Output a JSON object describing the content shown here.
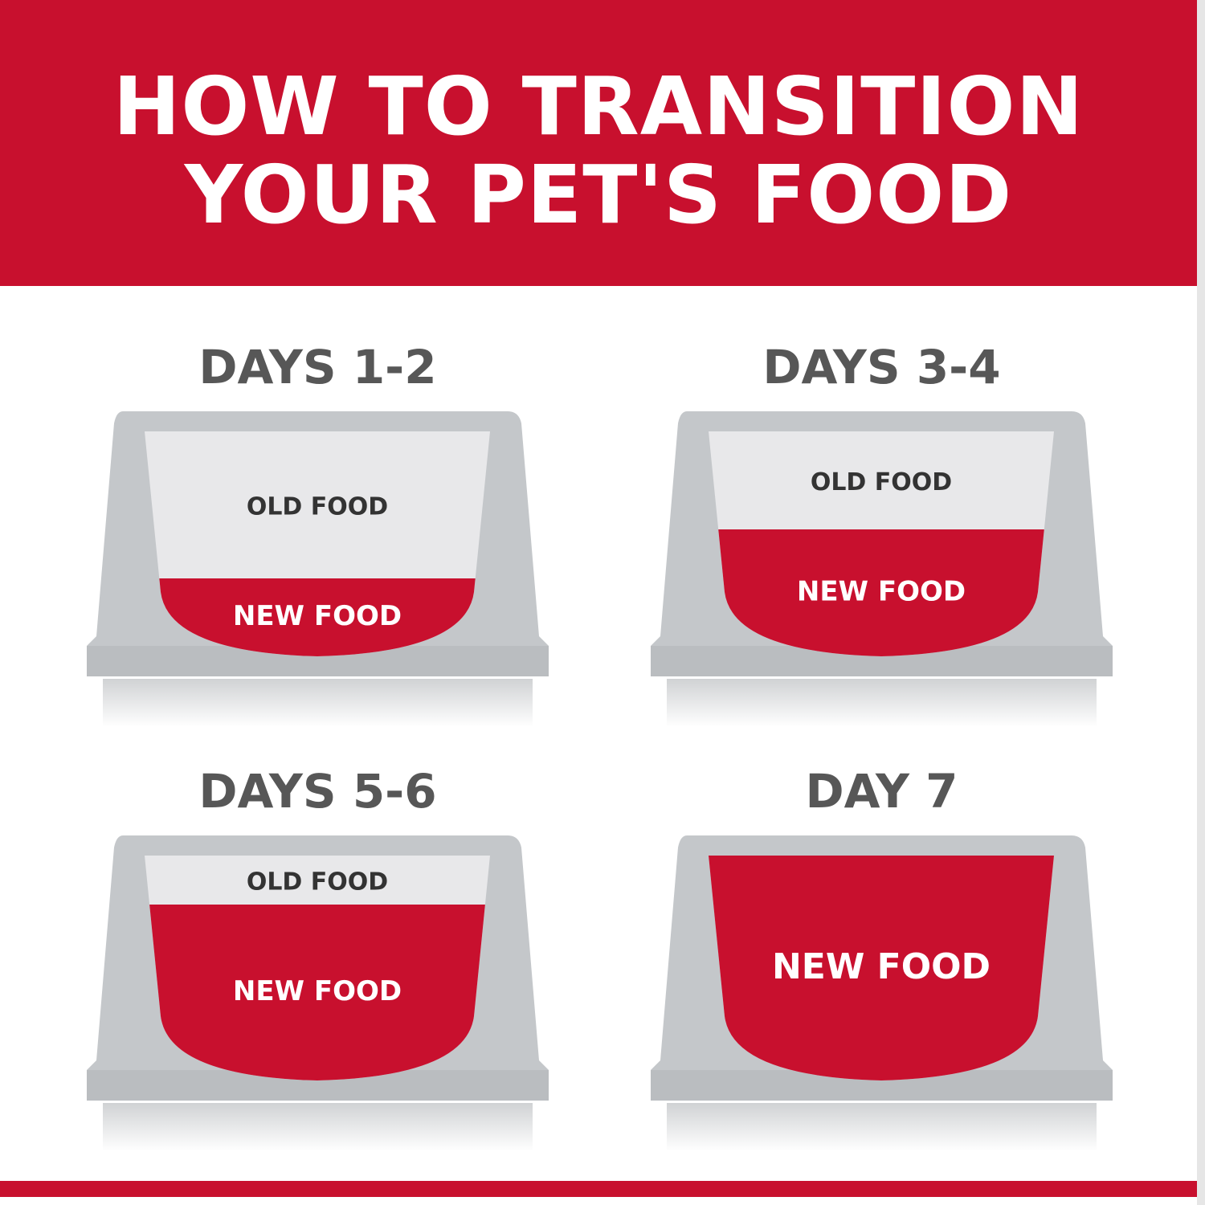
{
  "header": {
    "line1": "HOW TO TRANSITION",
    "line2": "YOUR PET'S FOOD"
  },
  "colors": {
    "brand_red": "#c8102e",
    "bowl_gray": "#c4c7ca",
    "old_food": "#e8e8ea",
    "title_gray": "#575757"
  },
  "panels": [
    {
      "title": "DAYS 1-2",
      "old_label": "OLD FOOD",
      "new_label": "NEW FOOD",
      "new_fraction": 0.25
    },
    {
      "title": "DAYS 3-4",
      "old_label": "OLD FOOD",
      "new_label": "NEW FOOD",
      "new_fraction": 0.5
    },
    {
      "title": "DAYS 5-6",
      "old_label": "OLD FOOD",
      "new_label": "NEW FOOD",
      "new_fraction": 0.75
    },
    {
      "title": "DAY 7",
      "old_label": "",
      "new_label": "NEW FOOD",
      "new_fraction": 1.0
    }
  ]
}
